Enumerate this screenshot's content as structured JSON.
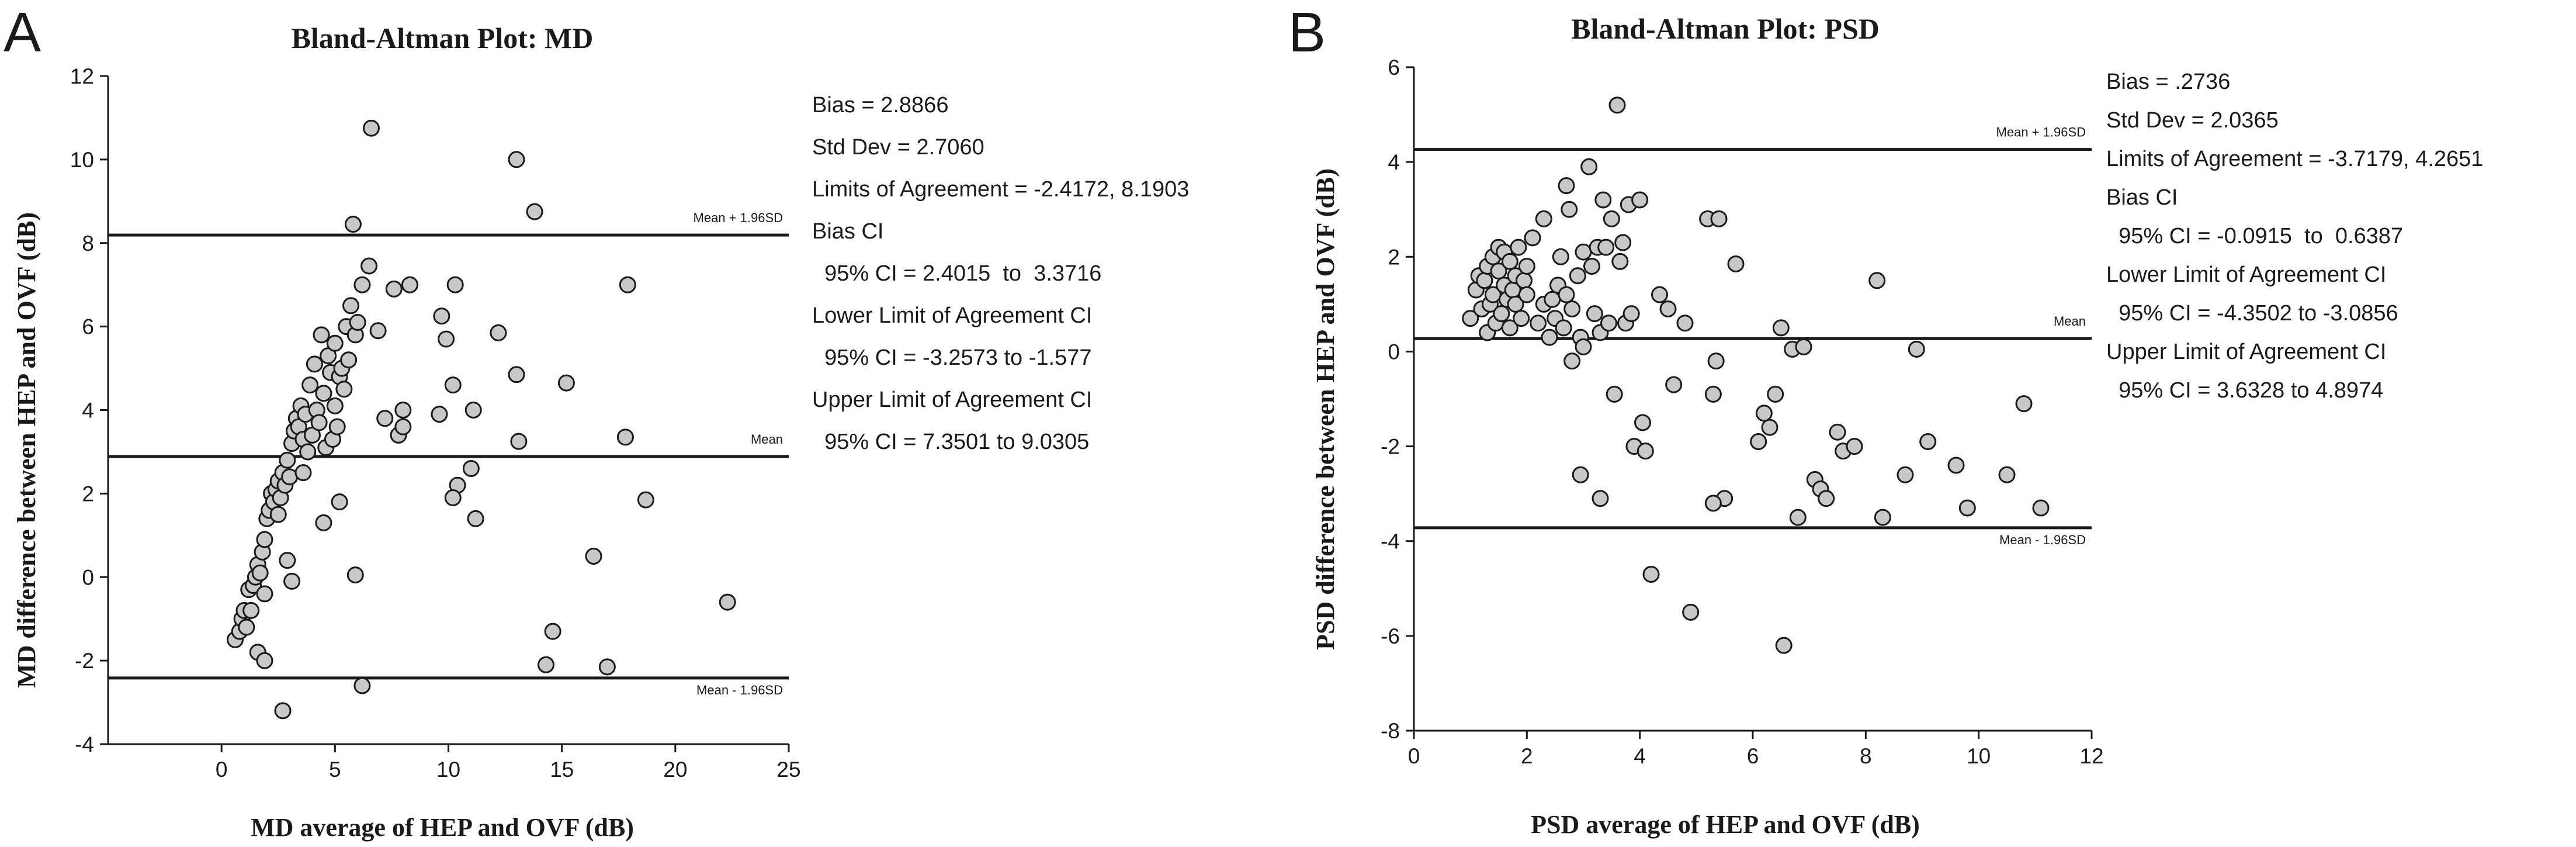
{
  "panels": [
    {
      "letter": "A",
      "stats": [
        "Bias = 2.8866",
        "Std Dev = 2.7060",
        "Limits of Agreement = -2.4172, 8.1903",
        "Bias CI",
        "  95% CI = 2.4015  to  3.3716",
        "Lower Limit of Agreement CI",
        "  95% CI = -3.2573 to -1.577",
        "Upper Limit of Agreement CI",
        "  95% CI = 7.3501 to 9.0305"
      ]
    },
    {
      "letter": "B",
      "stats": [
        "Bias = .2736",
        "Std Dev = 2.0365",
        "Limits of Agreement = -3.7179, 4.2651",
        "Bias CI",
        "  95% CI = -0.0915  to  0.6387",
        "Lower Limit of Agreement CI",
        "  95% CI = -4.3502 to -3.0856",
        "Upper Limit of Agreement CI",
        "  95% CI = 3.6328 to 4.8974"
      ]
    }
  ],
  "chart_data": [
    {
      "type": "scatter",
      "title": "Bland-Altman Plot: MD",
      "xlabel": "MD average of HEP and OVF (dB)",
      "ylabel": "MD difference between HEP and OVF (dB)",
      "xlim": [
        -5,
        25
      ],
      "ylim": [
        -4,
        12
      ],
      "xticks": [
        0,
        5,
        10,
        15,
        20,
        25
      ],
      "yticks": [
        -4,
        -2,
        0,
        2,
        4,
        6,
        8,
        10,
        12
      ],
      "grid": false,
      "reference_lines": [
        {
          "label": "Mean + 1.96SD",
          "y": 8.1903
        },
        {
          "label": "Mean",
          "y": 2.8866
        },
        {
          "label": "Mean - 1.96SD",
          "y": -2.4172
        }
      ],
      "points": [
        [
          0.6,
          -1.5
        ],
        [
          0.8,
          -1.3
        ],
        [
          0.9,
          -1.0
        ],
        [
          1.0,
          -0.8
        ],
        [
          1.1,
          -1.2
        ],
        [
          1.2,
          -0.3
        ],
        [
          1.3,
          -0.8
        ],
        [
          1.4,
          -0.2
        ],
        [
          1.5,
          0.0
        ],
        [
          1.6,
          0.3
        ],
        [
          1.7,
          0.1
        ],
        [
          1.8,
          0.6
        ],
        [
          1.9,
          0.9
        ],
        [
          1.9,
          -0.4
        ],
        [
          2.0,
          1.4
        ],
        [
          2.1,
          1.6
        ],
        [
          2.2,
          2.0
        ],
        [
          2.3,
          1.8
        ],
        [
          2.4,
          2.1
        ],
        [
          2.5,
          2.3
        ],
        [
          2.5,
          1.5
        ],
        [
          2.6,
          1.9
        ],
        [
          2.7,
          2.5
        ],
        [
          2.8,
          2.2
        ],
        [
          2.9,
          2.8
        ],
        [
          3.0,
          2.4
        ],
        [
          3.1,
          3.2
        ],
        [
          3.2,
          3.5
        ],
        [
          3.3,
          3.8
        ],
        [
          3.4,
          3.6
        ],
        [
          3.5,
          4.1
        ],
        [
          3.6,
          3.3
        ],
        [
          3.6,
          2.5
        ],
        [
          3.7,
          3.9
        ],
        [
          3.8,
          3.0
        ],
        [
          3.9,
          4.6
        ],
        [
          4.0,
          3.4
        ],
        [
          4.1,
          5.1
        ],
        [
          4.2,
          4.0
        ],
        [
          4.3,
          3.7
        ],
        [
          4.4,
          5.8
        ],
        [
          4.5,
          4.4
        ],
        [
          4.6,
          3.1
        ],
        [
          4.7,
          5.3
        ],
        [
          4.8,
          4.9
        ],
        [
          4.9,
          3.3
        ],
        [
          5.0,
          5.6
        ],
        [
          5.0,
          4.1
        ],
        [
          5.1,
          3.6
        ],
        [
          5.2,
          4.8
        ],
        [
          5.3,
          5.0
        ],
        [
          5.4,
          4.5
        ],
        [
          5.5,
          6.0
        ],
        [
          5.6,
          5.2
        ],
        [
          5.7,
          6.5
        ],
        [
          5.8,
          8.45
        ],
        [
          5.9,
          5.8
        ],
        [
          6.0,
          6.1
        ],
        [
          6.2,
          7.0
        ],
        [
          6.5,
          7.45
        ],
        [
          6.6,
          10.75
        ],
        [
          6.9,
          5.9
        ],
        [
          7.2,
          3.8
        ],
        [
          7.6,
          6.9
        ],
        [
          7.8,
          3.4
        ],
        [
          8.0,
          4.0
        ],
        [
          8.3,
          7.0
        ],
        [
          8.0,
          3.6
        ],
        [
          9.6,
          3.9
        ],
        [
          9.7,
          6.25
        ],
        [
          9.9,
          5.7
        ],
        [
          10.2,
          4.6
        ],
        [
          10.3,
          7.0
        ],
        [
          10.4,
          2.2
        ],
        [
          10.2,
          1.9
        ],
        [
          11.0,
          2.6
        ],
        [
          11.1,
          4.0
        ],
        [
          11.2,
          1.4
        ],
        [
          12.2,
          5.85
        ],
        [
          13.0,
          10.0
        ],
        [
          13.1,
          3.25
        ],
        [
          13.8,
          8.75
        ],
        [
          13.0,
          4.85
        ],
        [
          15.2,
          4.65
        ],
        [
          17.8,
          3.35
        ],
        [
          17.9,
          7.0
        ],
        [
          18.7,
          1.85
        ],
        [
          16.4,
          0.5
        ],
        [
          14.6,
          -1.3
        ],
        [
          14.3,
          -2.1
        ],
        [
          17.0,
          -2.15
        ],
        [
          22.3,
          -0.6
        ],
        [
          6.2,
          -2.6
        ],
        [
          2.7,
          -3.2
        ],
        [
          1.6,
          -1.8
        ],
        [
          1.9,
          -2.0
        ],
        [
          2.9,
          0.4
        ],
        [
          3.1,
          -0.1
        ],
        [
          4.5,
          1.3
        ],
        [
          5.2,
          1.8
        ],
        [
          5.9,
          0.05
        ]
      ]
    },
    {
      "type": "scatter",
      "title": "Bland-Altman Plot: PSD",
      "xlabel": "PSD average of HEP and OVF (dB)",
      "ylabel": "PSD difference between HEP and OVF (dB)",
      "xlim": [
        0,
        12
      ],
      "ylim": [
        -8,
        6
      ],
      "xticks": [
        0,
        2,
        4,
        6,
        8,
        10,
        12
      ],
      "yticks": [
        -8,
        -6,
        -4,
        -2,
        0,
        2,
        4,
        6
      ],
      "grid": false,
      "reference_lines": [
        {
          "label": "Mean + 1.96SD",
          "y": 4.2651
        },
        {
          "label": "Mean",
          "y": 0.2736
        },
        {
          "label": "Mean - 1.96SD",
          "y": -3.7179
        }
      ],
      "points": [
        [
          1.0,
          0.7
        ],
        [
          1.1,
          1.3
        ],
        [
          1.15,
          1.6
        ],
        [
          1.2,
          0.9
        ],
        [
          1.25,
          1.5
        ],
        [
          1.3,
          1.8
        ],
        [
          1.3,
          0.4
        ],
        [
          1.35,
          1.0
        ],
        [
          1.4,
          2.0
        ],
        [
          1.4,
          1.2
        ],
        [
          1.45,
          0.6
        ],
        [
          1.5,
          1.7
        ],
        [
          1.5,
          2.2
        ],
        [
          1.55,
          0.8
        ],
        [
          1.6,
          1.4
        ],
        [
          1.6,
          2.1
        ],
        [
          1.65,
          1.1
        ],
        [
          1.7,
          1.9
        ],
        [
          1.7,
          0.5
        ],
        [
          1.75,
          1.3
        ],
        [
          1.8,
          1.6
        ],
        [
          1.8,
          1.0
        ],
        [
          1.85,
          2.2
        ],
        [
          1.9,
          0.7
        ],
        [
          1.95,
          1.5
        ],
        [
          2.0,
          1.8
        ],
        [
          2.0,
          1.2
        ],
        [
          2.1,
          2.4
        ],
        [
          2.2,
          0.6
        ],
        [
          2.3,
          1.0
        ],
        [
          2.3,
          2.8
        ],
        [
          2.4,
          0.3
        ],
        [
          2.45,
          1.1
        ],
        [
          2.5,
          0.7
        ],
        [
          2.55,
          1.4
        ],
        [
          2.6,
          2.0
        ],
        [
          2.65,
          0.5
        ],
        [
          2.7,
          1.2
        ],
        [
          2.7,
          3.5
        ],
        [
          2.75,
          3.0
        ],
        [
          2.8,
          0.9
        ],
        [
          2.8,
          -0.2
        ],
        [
          2.9,
          1.6
        ],
        [
          2.95,
          0.3
        ],
        [
          3.0,
          2.1
        ],
        [
          3.0,
          0.1
        ],
        [
          3.1,
          3.9
        ],
        [
          3.15,
          1.8
        ],
        [
          3.2,
          0.8
        ],
        [
          3.25,
          2.2
        ],
        [
          3.3,
          0.4
        ],
        [
          3.35,
          3.2
        ],
        [
          3.4,
          2.2
        ],
        [
          3.45,
          0.6
        ],
        [
          3.5,
          2.8
        ],
        [
          3.55,
          -0.9
        ],
        [
          3.6,
          5.2
        ],
        [
          3.65,
          1.9
        ],
        [
          3.7,
          2.3
        ],
        [
          3.75,
          0.6
        ],
        [
          3.8,
          3.1
        ],
        [
          3.85,
          0.8
        ],
        [
          3.9,
          -2.0
        ],
        [
          4.0,
          3.2
        ],
        [
          4.05,
          -1.5
        ],
        [
          4.1,
          -2.1
        ],
        [
          4.2,
          -4.7
        ],
        [
          4.35,
          1.2
        ],
        [
          4.5,
          0.9
        ],
        [
          4.6,
          -0.7
        ],
        [
          4.8,
          0.6
        ],
        [
          4.9,
          -5.5
        ],
        [
          5.2,
          2.8
        ],
        [
          5.3,
          -0.9
        ],
        [
          5.35,
          -0.2
        ],
        [
          5.4,
          2.8
        ],
        [
          5.5,
          -3.1
        ],
        [
          5.3,
          -3.2
        ],
        [
          5.7,
          1.85
        ],
        [
          6.1,
          -1.9
        ],
        [
          6.3,
          -1.6
        ],
        [
          6.4,
          -0.9
        ],
        [
          6.5,
          0.5
        ],
        [
          6.55,
          -6.2
        ],
        [
          6.7,
          0.05
        ],
        [
          6.8,
          -3.5
        ],
        [
          6.9,
          0.1
        ],
        [
          7.1,
          -2.7
        ],
        [
          7.2,
          -2.9
        ],
        [
          7.3,
          -3.1
        ],
        [
          7.5,
          -1.7
        ],
        [
          7.6,
          -2.1
        ],
        [
          7.8,
          -2.0
        ],
        [
          8.2,
          1.5
        ],
        [
          8.3,
          -3.5
        ],
        [
          8.7,
          -2.6
        ],
        [
          8.9,
          0.05
        ],
        [
          9.1,
          -1.9
        ],
        [
          9.6,
          -2.4
        ],
        [
          9.8,
          -3.3
        ],
        [
          10.5,
          -2.6
        ],
        [
          10.8,
          -1.1
        ],
        [
          11.1,
          -3.3
        ],
        [
          6.2,
          -1.3
        ],
        [
          3.3,
          -3.1
        ],
        [
          2.95,
          -2.6
        ]
      ]
    }
  ]
}
